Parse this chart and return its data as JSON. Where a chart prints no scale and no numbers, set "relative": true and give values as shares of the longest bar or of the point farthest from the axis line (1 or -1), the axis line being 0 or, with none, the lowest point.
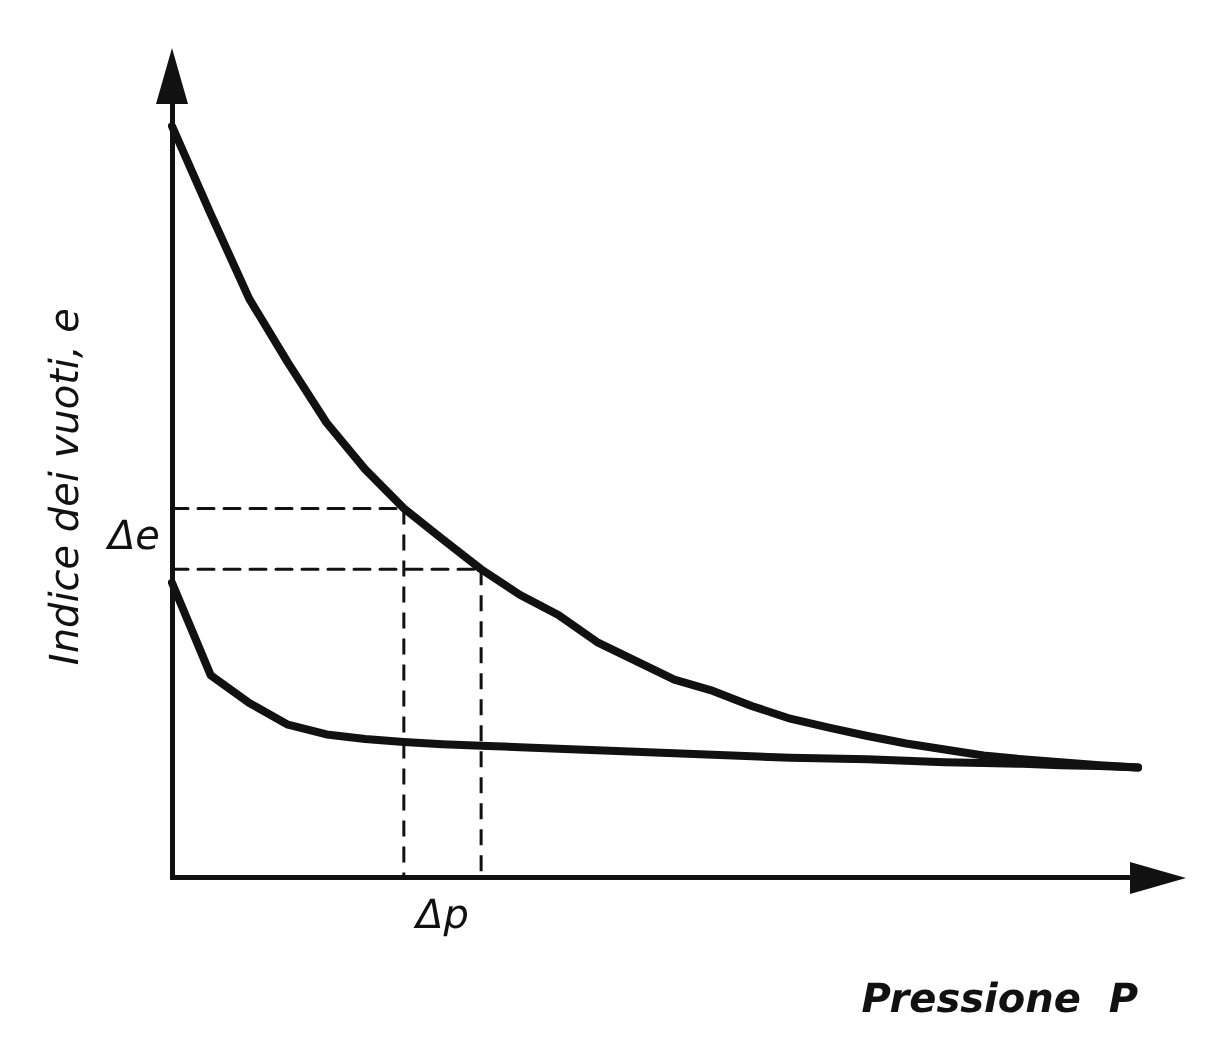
{
  "chart_data": {
    "type": "line",
    "relative": true,
    "xlabel": "Pressione  P",
    "ylabel": "Indice dei vuoti, e",
    "grid": false,
    "categories": [
      null,
      null,
      null,
      null,
      null,
      null,
      null,
      null,
      null,
      null,
      null,
      null,
      null,
      null,
      null,
      null,
      null,
      null,
      null,
      null,
      null,
      null,
      null,
      null,
      null,
      null
    ],
    "series": [
      {
        "color": "#111111",
        "line_style": "solid",
        "values": [
          1,
          0.883,
          0.77,
          0.685,
          0.605,
          0.543,
          0.491,
          0.45,
          0.41,
          0.376,
          0.349,
          0.313,
          0.288,
          0.263,
          0.248,
          0.228,
          0.211,
          0.199,
          0.188,
          0.178,
          0.17,
          0.162,
          0.157,
          0.153,
          0.149,
          0.146
        ]
      },
      {
        "color": "#111111",
        "line_style": "solid",
        "values": [
          0.392,
          0.269,
          0.232,
          0.203,
          0.19,
          0.184,
          0.18,
          0.177,
          0.175,
          0.173,
          0.171,
          0.169,
          0.167,
          0.165,
          0.163,
          0.161,
          0.159,
          0.158,
          0.157,
          0.155,
          0.153,
          0.152,
          0.151,
          0.149,
          0.148,
          0.146
        ]
      },
      {
        "color": "#111111",
        "line_style": "dashed",
        "values": [
          0.491,
          0.491,
          0.491,
          0.491,
          0.491,
          0.491,
          0.491,
          null,
          null,
          null,
          null,
          null,
          null,
          null,
          null,
          null,
          null,
          null,
          null,
          null,
          null,
          null,
          null,
          null,
          null,
          null
        ]
      },
      {
        "color": "#111111",
        "line_style": "dashed",
        "values": [
          0.41,
          0.41,
          0.41,
          0.41,
          0.41,
          0.41,
          0.41,
          0.41,
          0.41,
          null,
          null,
          null,
          null,
          null,
          null,
          null,
          null,
          null,
          null,
          null,
          null,
          null,
          null,
          null,
          null,
          null
        ]
      }
    ],
    "annotations": [
      "Δe",
      "Δp"
    ]
  }
}
